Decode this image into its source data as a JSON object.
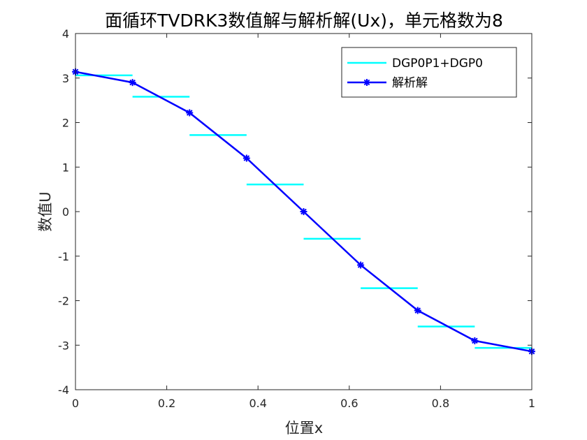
{
  "chart_data": {
    "type": "line",
    "title": "面循环TVDRK3数值解与解析解(Ux)，单元格数为8",
    "xlabel": "位置x",
    "ylabel": "数值U",
    "xlim": [
      0,
      1
    ],
    "ylim": [
      -4,
      4
    ],
    "xticks": [
      0,
      0.2,
      0.4,
      0.6,
      0.8,
      1
    ],
    "xtick_labels": [
      "0",
      "0.2",
      "0.4",
      "0.6",
      "0.8",
      "1"
    ],
    "yticks": [
      -4,
      -3,
      -2,
      -1,
      0,
      1,
      2,
      3,
      4
    ],
    "ytick_labels": [
      "-4",
      "-3",
      "-2",
      "-1",
      "0",
      "1",
      "2",
      "3",
      "4"
    ],
    "grid": false,
    "legend_position": "top-right",
    "series": [
      {
        "name": "DGP0P1+DGP0",
        "style": "piecewise-constant",
        "color": "#00ffff",
        "segments": [
          {
            "x0": 0.0,
            "x1": 0.125,
            "y": 3.06
          },
          {
            "x0": 0.125,
            "x1": 0.25,
            "y": 2.58
          },
          {
            "x0": 0.25,
            "x1": 0.375,
            "y": 1.72
          },
          {
            "x0": 0.375,
            "x1": 0.5,
            "y": 0.61
          },
          {
            "x0": 0.5,
            "x1": 0.625,
            "y": -0.61
          },
          {
            "x0": 0.625,
            "x1": 0.75,
            "y": -1.72
          },
          {
            "x0": 0.75,
            "x1": 0.875,
            "y": -2.58
          },
          {
            "x0": 0.875,
            "x1": 1.0,
            "y": -3.06
          }
        ]
      },
      {
        "name": "解析解",
        "style": "line-with-star-markers",
        "color": "#0000ff",
        "x": [
          0,
          0.125,
          0.25,
          0.375,
          0.5,
          0.625,
          0.75,
          0.875,
          1.0
        ],
        "y": [
          3.14,
          2.9,
          2.22,
          1.2,
          0.0,
          -1.2,
          -2.22,
          -2.9,
          -3.14
        ]
      }
    ]
  }
}
